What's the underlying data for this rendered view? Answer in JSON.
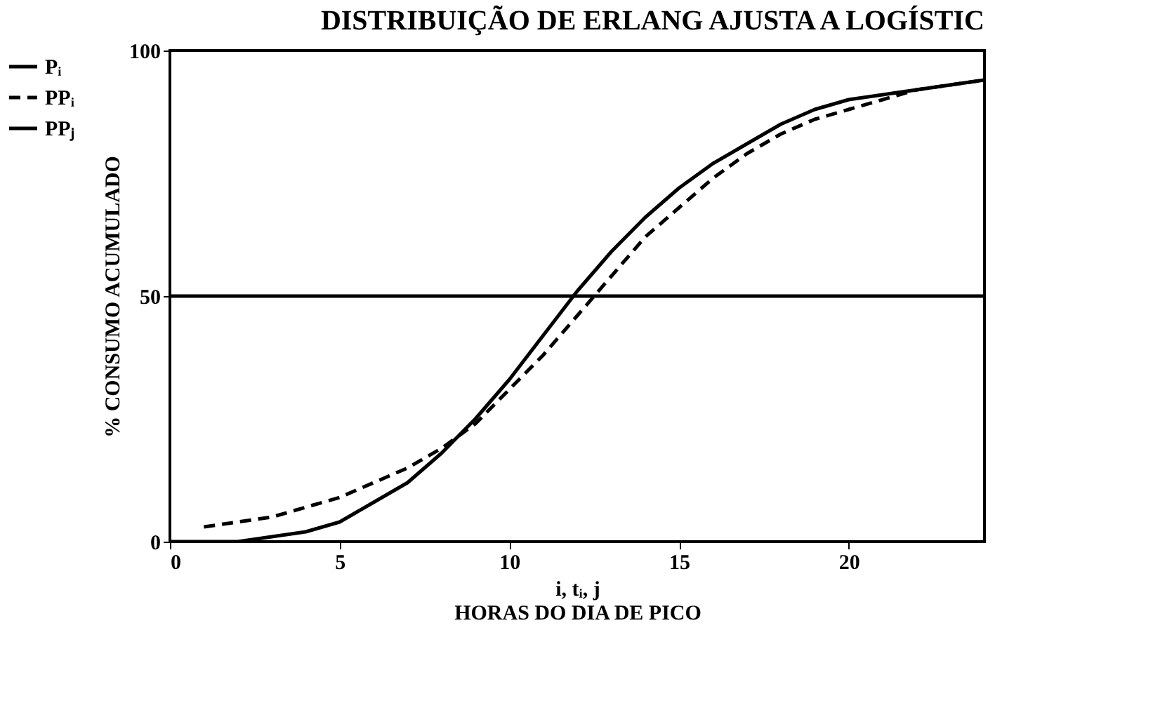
{
  "chart_data": {
    "type": "line",
    "title": "DISTRIBUIÇÃO DE ERLANG AJUSTA A LOGÍSTIC",
    "xlabel": "i, tᵢ, j\nHORAS DO DIA DE PICO",
    "ylabel": "% CONSUMO ACUMULADO",
    "xlim": [
      0,
      24
    ],
    "ylim": [
      0,
      100
    ],
    "xticks": [
      0,
      5,
      10,
      15,
      20
    ],
    "yticks": [
      0,
      50,
      100
    ],
    "grid": false,
    "legend": "left",
    "marker": "none",
    "series": [
      {
        "name": "Pᵢ",
        "color": "#000000",
        "line_style": "solid",
        "x": [
          0,
          1,
          2,
          3,
          4,
          5,
          6,
          7,
          8,
          9,
          10,
          11,
          12,
          13,
          14,
          15,
          16,
          17,
          18,
          19,
          20,
          21,
          22,
          23,
          24
        ],
        "values": [
          0,
          0,
          0,
          1,
          2,
          4,
          8,
          12,
          18,
          25,
          33,
          42,
          51,
          59,
          66,
          72,
          77,
          81,
          85,
          88,
          90,
          91,
          92,
          93,
          94
        ]
      },
      {
        "name": "PPᵢ",
        "color": "#000000",
        "line_style": "dashed",
        "x": [
          1,
          2,
          3,
          4,
          5,
          6,
          7,
          8,
          9,
          10,
          11,
          12,
          13,
          14,
          15,
          16,
          17,
          18,
          19,
          20,
          21,
          22,
          23,
          24
        ],
        "values": [
          3,
          4,
          5,
          7,
          9,
          12,
          15,
          19,
          24,
          31,
          38,
          46,
          54,
          62,
          68,
          74,
          79,
          83,
          86,
          88,
          90,
          92,
          93,
          94
        ]
      },
      {
        "name": "PPⱼ",
        "color": "#000000",
        "line_style": "solid",
        "x": [
          0,
          24
        ],
        "values": [
          50,
          50
        ]
      }
    ]
  }
}
